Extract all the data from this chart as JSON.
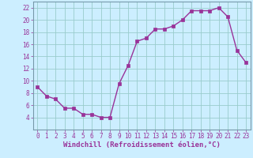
{
  "x": [
    0,
    1,
    2,
    3,
    4,
    5,
    6,
    7,
    8,
    9,
    10,
    11,
    12,
    13,
    14,
    15,
    16,
    17,
    18,
    19,
    20,
    21,
    22,
    23
  ],
  "y": [
    9,
    7.5,
    7,
    5.5,
    5.5,
    4.5,
    4.5,
    4,
    4,
    9.5,
    12.5,
    16.5,
    17,
    18.5,
    18.5,
    19,
    20,
    21.5,
    21.5,
    21.5,
    22,
    20.5,
    15,
    13
  ],
  "line_color": "#993399",
  "marker": "s",
  "marker_size": 2.2,
  "line_width": 1.0,
  "xlabel": "Windchill (Refroidissement éolien,°C)",
  "xlabel_fontsize": 6.5,
  "bg_color": "#cceeff",
  "grid_color": "#99cccc",
  "border_color": "#7799aa",
  "ylim": [
    2,
    23
  ],
  "xlim": [
    -0.5,
    23.5
  ],
  "yticks": [
    4,
    6,
    8,
    10,
    12,
    14,
    16,
    18,
    20,
    22
  ],
  "xticks": [
    0,
    1,
    2,
    3,
    4,
    5,
    6,
    7,
    8,
    9,
    10,
    11,
    12,
    13,
    14,
    15,
    16,
    17,
    18,
    19,
    20,
    21,
    22,
    23
  ],
  "tick_fontsize": 5.5,
  "tick_color": "#993399"
}
